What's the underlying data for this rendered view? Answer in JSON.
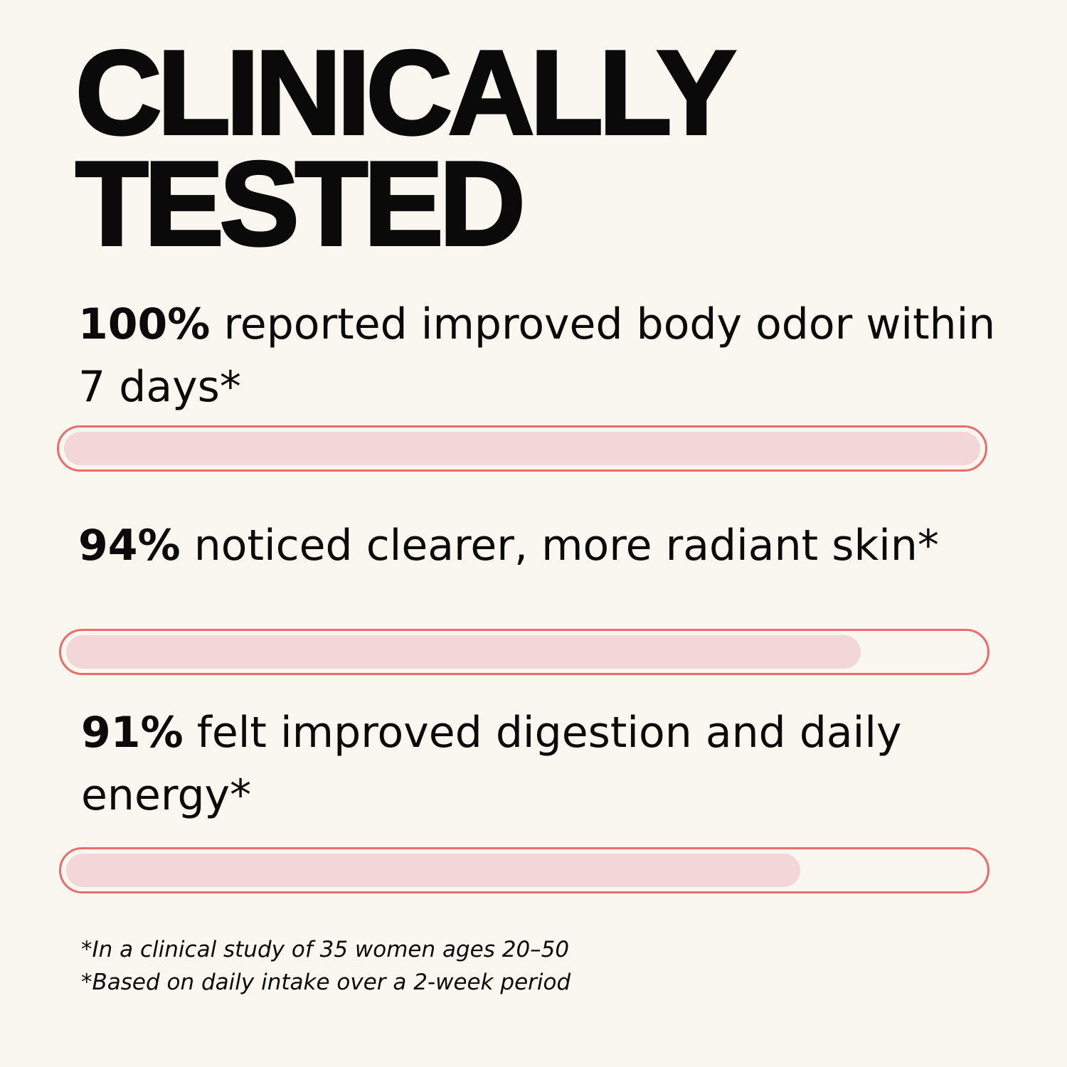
{
  "title": {
    "line1": "CLINICALLY",
    "line2": "TESTED"
  },
  "colors": {
    "background": "#faf7f0",
    "bar_border": "#ee6b6b",
    "bar_fill": "#f2d6d8",
    "text": "#0a0a0a"
  },
  "stats": [
    {
      "percent": "100%",
      "text": " reported improved body odor within 7 days*",
      "progress": 100
    },
    {
      "percent": "94%",
      "text": "noticed clearer, more radiant skin*",
      "progress": 94
    },
    {
      "percent": "91%",
      "text": "felt improved digestion and daily energy*",
      "progress": 91
    }
  ],
  "footnotes": [
    "*In a clinical study of 35 women ages 20–50",
    "*Based on daily intake over a 2-week period"
  ]
}
